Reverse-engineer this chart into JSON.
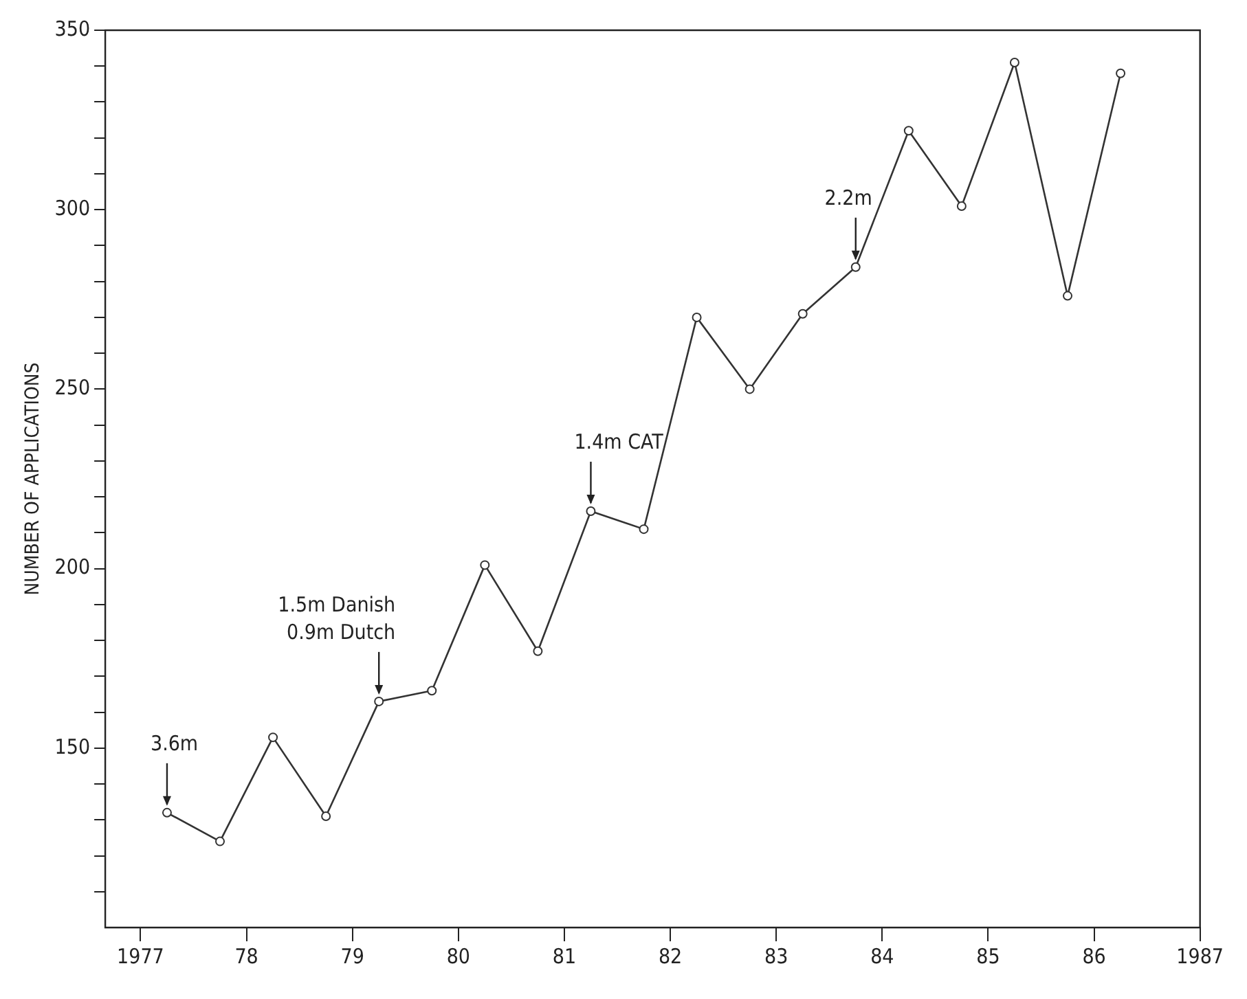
{
  "chart_data": {
    "type": "line",
    "ylabel": "NUMBER OF APPLICATIONS",
    "x": [
      1977.25,
      1977.75,
      1978.25,
      1978.75,
      1979.25,
      1979.75,
      1980.25,
      1980.75,
      1981.25,
      1981.75,
      1982.25,
      1982.75,
      1983.25,
      1983.75,
      1984.25,
      1984.75,
      1985.25,
      1985.75,
      1986.25
    ],
    "series": [
      {
        "color": "#333333",
        "values": [
          132,
          124,
          153,
          131,
          163,
          166,
          201,
          177,
          216,
          211,
          270,
          250,
          271,
          284,
          322,
          301,
          341,
          276,
          338
        ]
      }
    ],
    "xlim": [
      1976.667,
      1987
    ],
    "xticks": [
      {
        "value": 1977,
        "label": "1977"
      },
      {
        "value": 1978,
        "label": "78"
      },
      {
        "value": 1979,
        "label": "79"
      },
      {
        "value": 1980,
        "label": "80"
      },
      {
        "value": 1981,
        "label": "81"
      },
      {
        "value": 1982,
        "label": "82"
      },
      {
        "value": 1983,
        "label": "83"
      },
      {
        "value": 1984,
        "label": "84"
      },
      {
        "value": 1985,
        "label": "85"
      },
      {
        "value": 1986,
        "label": "86"
      },
      {
        "value": 1987,
        "label": "1987"
      }
    ],
    "ylim": [
      100,
      350
    ],
    "yticks": [
      {
        "value": 110,
        "label": null
      },
      {
        "value": 120,
        "label": null
      },
      {
        "value": 130,
        "label": null
      },
      {
        "value": 140,
        "label": null
      },
      150,
      {
        "value": 160,
        "label": null
      },
      {
        "value": 170,
        "label": null
      },
      {
        "value": 180,
        "label": null
      },
      {
        "value": 190,
        "label": null
      },
      200,
      {
        "value": 210,
        "label": null
      },
      {
        "value": 220,
        "label": null
      },
      {
        "value": 230,
        "label": null
      },
      {
        "value": 240,
        "label": null
      },
      250,
      {
        "value": 260,
        "label": null
      },
      {
        "value": 270,
        "label": null
      },
      {
        "value": 280,
        "label": null
      },
      {
        "value": 290,
        "label": null
      },
      300,
      {
        "value": 310,
        "label": null
      },
      {
        "value": 320,
        "label": null
      },
      {
        "value": 330,
        "label": null
      },
      {
        "value": 340,
        "label": null
      },
      350
    ],
    "annotations": [
      {
        "text": "3.6m",
        "x": 1977.25,
        "y": 132
      },
      {
        "text": "1.5m Danish\n0.9m Dutch",
        "x": 1979.25,
        "y": 163
      },
      {
        "text": "1.4m CAT",
        "x": 1981.25,
        "y": 216
      },
      {
        "text": "2.2m",
        "x": 1983.75,
        "y": 284
      }
    ],
    "marker": "circle",
    "line_style": "solid",
    "grid": false,
    "legend": false
  }
}
